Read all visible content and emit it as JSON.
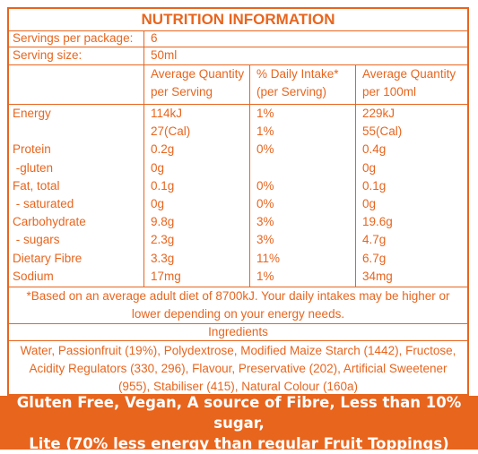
{
  "title": "NUTRITION INFORMATION",
  "servings_per_package": {
    "label": "Servings per package:",
    "value": "6"
  },
  "serving_size": {
    "label": "Serving size:",
    "value": "50ml"
  },
  "headers": {
    "col1_line1": "Average Quantity",
    "col1_line2": "per Serving",
    "col2_line1": "% Daily Intake*",
    "col2_line2": "(per Serving)",
    "col3_line1": "Average Quantity",
    "col3_line2": "per 100ml"
  },
  "rows": [
    {
      "name": "Energy",
      "serving": "114kJ",
      "daily": "1%",
      "per100": "229kJ"
    },
    {
      "name": "",
      "serving": "27(Cal)",
      "daily": "1%",
      "per100": "55(Cal)"
    },
    {
      "name": "Protein",
      "serving": "0.2g",
      "daily": "0%",
      "per100": "0.4g"
    },
    {
      "name": " -gluten",
      "serving": "0g",
      "daily": "",
      "per100": "0g"
    },
    {
      "name": "Fat, total",
      "serving": "0.1g",
      "daily": "0%",
      "per100": "0.1g"
    },
    {
      "name": " - saturated",
      "serving": "0g",
      "daily": "0%",
      "per100": "0g"
    },
    {
      "name": "Carbohydrate",
      "serving": "9.8g",
      "daily": "3%",
      "per100": "19.6g"
    },
    {
      "name": " - sugars",
      "serving": "2.3g",
      "daily": "3%",
      "per100": "4.7g"
    },
    {
      "name": "Dietary Fibre",
      "serving": "3.3g",
      "daily": "11%",
      "per100": "6.7g"
    },
    {
      "name": "Sodium",
      "serving": "17mg",
      "daily": "1%",
      "per100": "34mg"
    }
  ],
  "footnote": {
    "line1": "*Based on an average adult diet of 8700kJ. Your daily intakes may be higher or",
    "line2": "lower depending on your energy needs."
  },
  "ingredients": {
    "heading": "Ingredients",
    "line1": "Water, Passionfruit (19%), Polydextrose, Modified Maize Starch (1442), Fructose,",
    "line2": "Acidity Regulators (330, 296), Flavour, Preservative (202), Artificial Sweetener",
    "line3": "(955), Stabiliser (415), Natural Colour (160a)"
  },
  "claims": {
    "line1": "Gluten Free, Vegan, A source of Fibre, Less than 10% sugar,",
    "line2": "Lite (70% less energy than regular Fruit Toppings)"
  }
}
